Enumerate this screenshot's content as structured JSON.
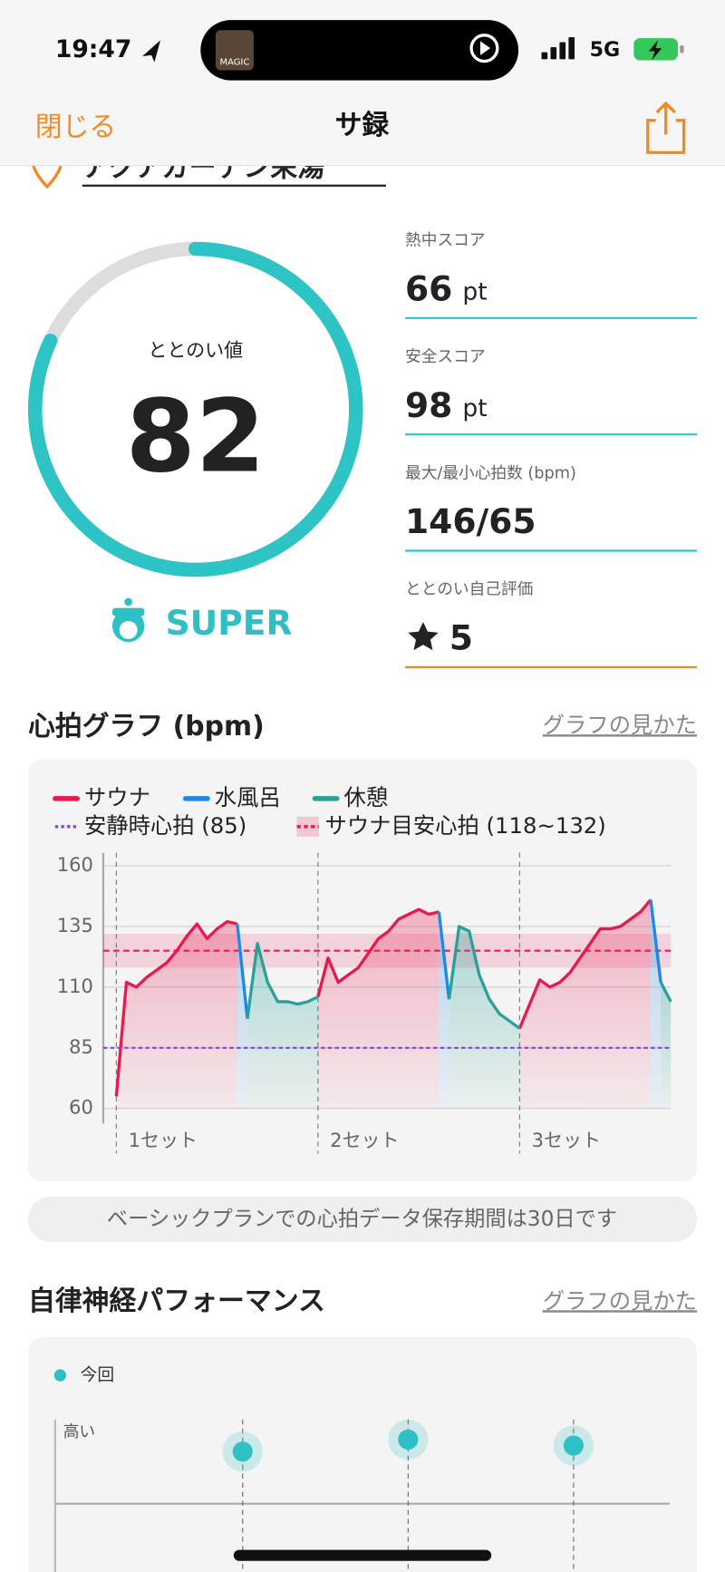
{
  "status_bar": {
    "time": "19:47",
    "now_playing": "MAGIC",
    "network": "5G"
  },
  "nav": {
    "close": "閉じる",
    "title": "サ録"
  },
  "facility": "アクアガーデン栄湯",
  "score": {
    "label": "ととのい値",
    "value": 82,
    "lim": [
      0,
      100
    ],
    "rank": "SUPER"
  },
  "metrics": [
    {
      "label": "熱中スコア",
      "value": 66,
      "unit": "pt"
    },
    {
      "label": "安全スコア",
      "value": 98,
      "unit": "pt"
    },
    {
      "label": "最大/最小心拍数 (bpm)",
      "value": "146/65"
    },
    {
      "label": "ととのい自己評価",
      "value": 5
    }
  ],
  "heart": {
    "title": "心拍グラフ (bpm)",
    "help": "グラフの見かた",
    "notice": "ベーシックプランでの心拍データ保存期間は30日です",
    "chart_data": {
      "type": "line",
      "series": [
        {
          "name": "サウナ",
          "color": "#e8194f",
          "values": [
            65,
            112,
            110,
            114,
            117,
            120,
            125,
            131,
            136,
            130,
            134,
            137,
            136,
            null,
            null,
            null,
            null,
            null,
            null,
            null,
            106,
            122,
            112,
            115,
            118,
            124,
            130,
            133,
            138,
            140,
            142,
            140,
            141,
            null,
            null,
            null,
            null,
            null,
            null,
            null,
            93,
            103,
            113,
            110,
            112,
            116,
            122,
            128,
            134,
            134,
            135,
            138,
            141,
            146,
            null,
            null
          ]
        },
        {
          "name": "水風呂",
          "color": "#1e88e5",
          "values": [
            null,
            null,
            null,
            null,
            null,
            null,
            null,
            null,
            null,
            null,
            null,
            null,
            136,
            97,
            null,
            null,
            null,
            null,
            null,
            null,
            null,
            null,
            null,
            null,
            null,
            null,
            null,
            null,
            null,
            null,
            null,
            null,
            141,
            105,
            null,
            null,
            null,
            null,
            null,
            null,
            null,
            null,
            null,
            null,
            null,
            null,
            null,
            null,
            null,
            null,
            null,
            null,
            null,
            146,
            112,
            null
          ]
        },
        {
          "name": "休憩",
          "color": "#2aa198",
          "values": [
            null,
            null,
            null,
            null,
            null,
            null,
            null,
            null,
            null,
            null,
            null,
            null,
            null,
            97,
            128,
            112,
            104,
            104,
            103,
            104,
            106,
            null,
            null,
            null,
            null,
            null,
            null,
            null,
            null,
            null,
            null,
            null,
            null,
            105,
            135,
            133,
            115,
            105,
            99,
            96,
            93,
            null,
            null,
            null,
            null,
            null,
            null,
            null,
            null,
            null,
            null,
            null,
            null,
            null,
            112,
            104
          ]
        }
      ],
      "resting": {
        "value": 85,
        "label": "安静時心拍 (85)",
        "color": "#8b3fe0"
      },
      "target": {
        "range": [
          118,
          132
        ],
        "label": "サウナ目安心拍 (118~132)",
        "color": "#e8194f"
      },
      "sets": [
        "1セット",
        "2セット",
        "3セット"
      ],
      "ylim": [
        60,
        160
      ],
      "yticks": [
        60,
        85,
        110,
        135,
        160
      ],
      "grid": true
    }
  },
  "autonomic": {
    "title": "自律神経パフォーマンス",
    "help": "グラフの見かた",
    "legend": "今回",
    "y_label": "高い"
  }
}
